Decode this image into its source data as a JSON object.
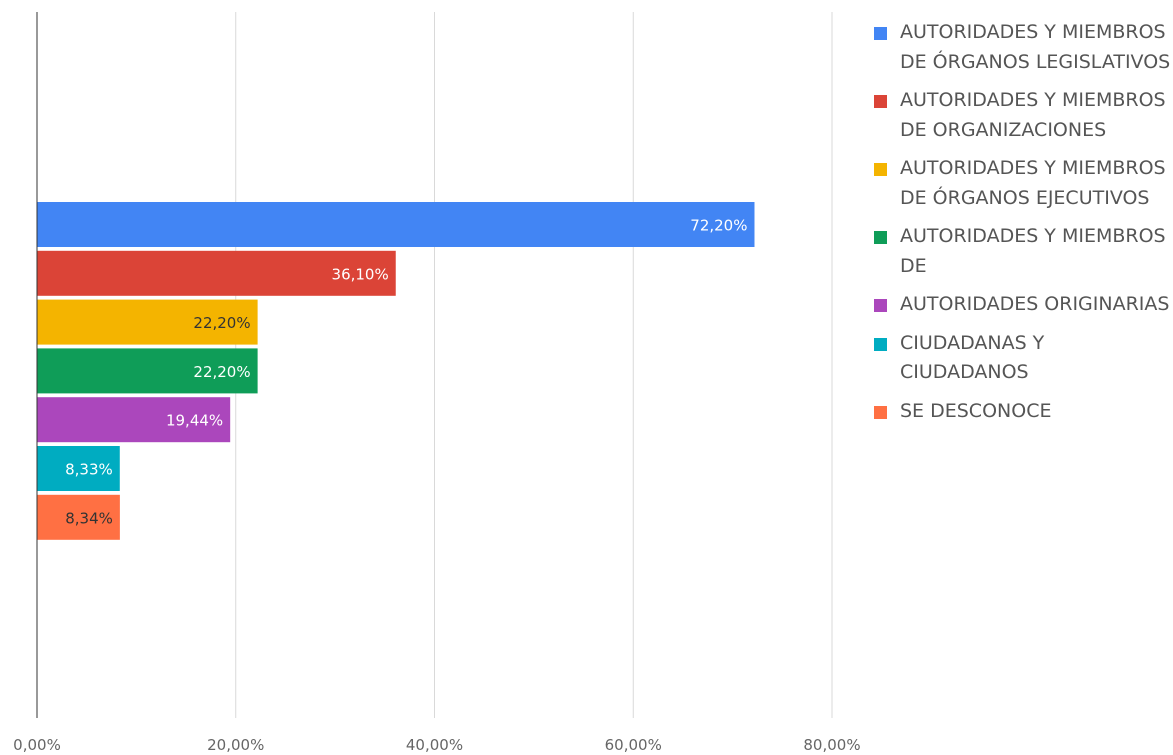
{
  "chart_data": {
    "type": "bar",
    "orientation": "horizontal",
    "xlim": [
      0,
      80
    ],
    "ticks": [
      "0,00%",
      "20,00%",
      "40,00%",
      "60,00%",
      "80,00%"
    ],
    "grid": true,
    "legend_position": "right",
    "series": [
      {
        "name": "AUTORIDADES Y MIEMBROS DE ÓRGANOS LEGISLATIVOS",
        "value": 72.2,
        "label": "72,20%",
        "color": "#4285f4",
        "label_color": "#ffffff"
      },
      {
        "name": "AUTORIDADES Y MIEMBROS DE ORGANIZACIONES",
        "value": 36.1,
        "label": "36,10%",
        "color": "#db4437",
        "label_color": "#ffffff"
      },
      {
        "name": "AUTORIDADES Y MIEMBROS DE ÓRGANOS EJECUTIVOS",
        "value": 22.2,
        "label": "22,20%",
        "color": "#f4b400",
        "label_color": "#333333"
      },
      {
        "name": "AUTORIDADES Y MIEMBROS DE",
        "value": 22.2,
        "label": "22,20%",
        "color": "#0f9d58",
        "label_color": "#ffffff"
      },
      {
        "name": "AUTORIDADES ORIGINARIAS",
        "value": 19.44,
        "label": "19,44%",
        "color": "#ab47bc",
        "label_color": "#ffffff"
      },
      {
        "name": "CIUDADANAS Y CIUDADANOS",
        "value": 8.33,
        "label": "8,33%",
        "color": "#00acc1",
        "label_color": "#ffffff"
      },
      {
        "name": "SE DESCONOCE",
        "value": 8.34,
        "label": "8,34%",
        "color": "#ff7043",
        "label_color": "#333333"
      }
    ]
  }
}
